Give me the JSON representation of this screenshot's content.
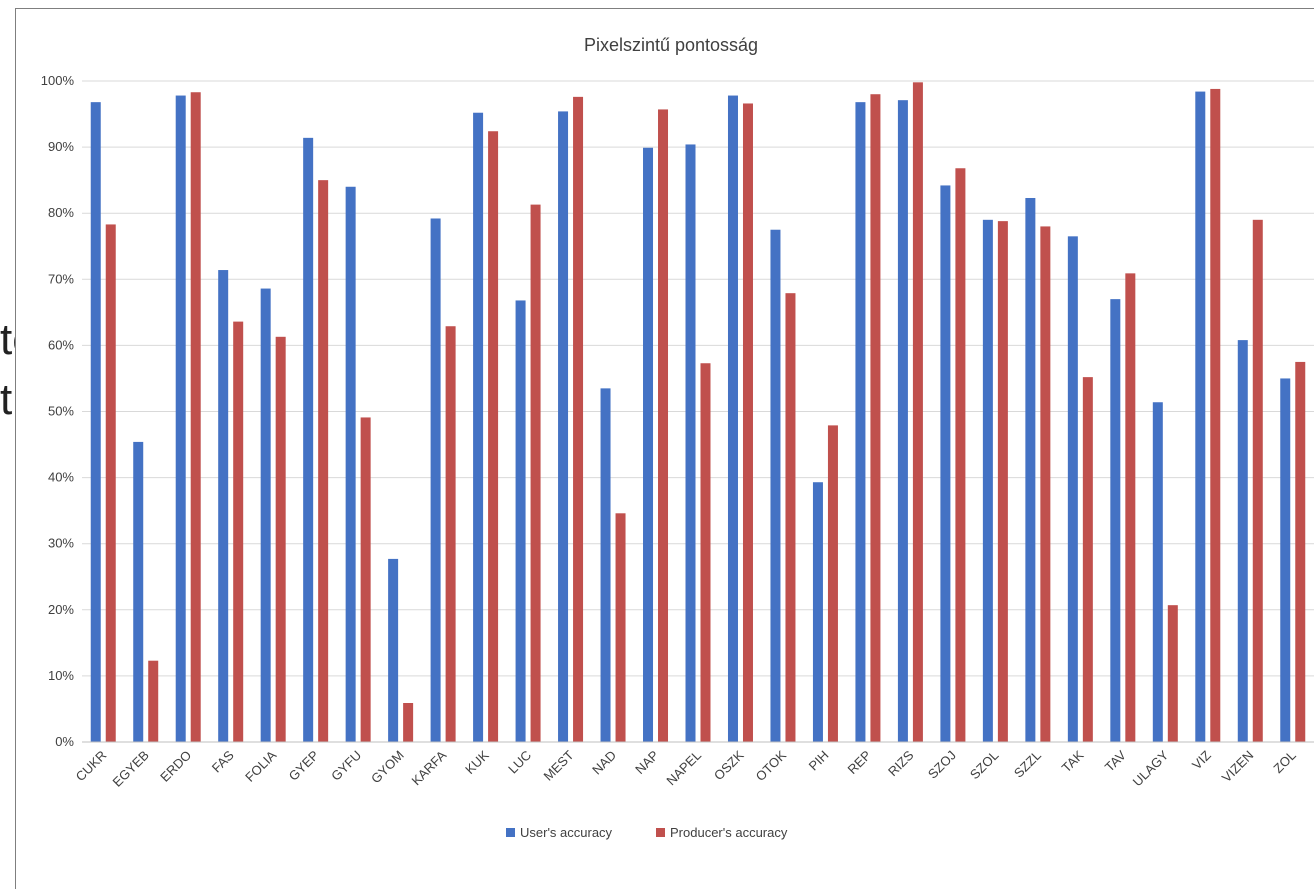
{
  "background_text": [
    "tc",
    "t"
  ],
  "chart_data": {
    "type": "bar",
    "title": "Pixelszintű pontosság",
    "xlabel": "",
    "ylabel": "",
    "ylim": [
      0,
      100
    ],
    "yticks": [
      "0%",
      "10%",
      "20%",
      "30%",
      "40%",
      "50%",
      "60%",
      "70%",
      "80%",
      "90%",
      "100%"
    ],
    "grid": true,
    "legend_position": "bottom",
    "categories": [
      "CUKR",
      "EGYEB",
      "ERDO",
      "FAS",
      "FOLIA",
      "GYEP",
      "GYFU",
      "GYOM",
      "KARFA",
      "KUK",
      "LUC",
      "MEST",
      "NAD",
      "NAP",
      "NAPEL",
      "OSZK",
      "OTOK",
      "PIH",
      "REP",
      "RIZS",
      "SZOJ",
      "SZOL",
      "SZZL",
      "TAK",
      "TAV",
      "ULAGY",
      "VIZ",
      "VIZEN",
      "ZOL"
    ],
    "series": [
      {
        "name": "User's accuracy",
        "color": "#4472c4",
        "values": [
          96.8,
          45.4,
          97.8,
          71.4,
          68.6,
          91.4,
          84.0,
          27.7,
          79.2,
          95.2,
          66.8,
          95.4,
          53.5,
          89.9,
          90.4,
          97.8,
          77.5,
          39.3,
          96.8,
          97.1,
          84.2,
          79.0,
          82.3,
          76.5,
          67.0,
          51.4,
          98.4,
          60.8,
          55.0
        ]
      },
      {
        "name": "Producer's accuracy",
        "color": "#c0504d",
        "values": [
          78.3,
          12.3,
          98.3,
          63.6,
          61.3,
          85.0,
          49.1,
          5.9,
          62.9,
          92.4,
          81.3,
          97.6,
          34.6,
          95.7,
          57.3,
          96.6,
          67.9,
          47.9,
          98.0,
          99.8,
          86.8,
          78.8,
          78.0,
          55.2,
          70.9,
          20.7,
          98.8,
          79.0,
          57.5
        ]
      }
    ]
  }
}
